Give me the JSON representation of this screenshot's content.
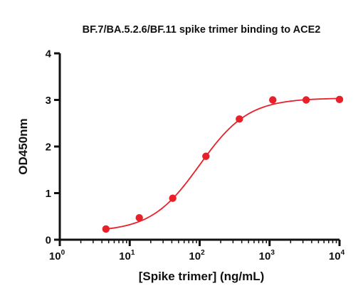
{
  "chart_data": {
    "type": "scatter",
    "title": "BF.7/BA.5.2.6/BF.11 spike trimer binding to ACE2",
    "xlabel": "[Spike trimer] (ng/mL)",
    "ylabel": "OD450nm",
    "x_scale": "log10",
    "xlim": [
      1,
      10000
    ],
    "ylim": [
      0,
      4
    ],
    "x_ticks": [
      {
        "base": "10",
        "exp": "0",
        "value": 1
      },
      {
        "base": "10",
        "exp": "1",
        "value": 10
      },
      {
        "base": "10",
        "exp": "2",
        "value": 100
      },
      {
        "base": "10",
        "exp": "3",
        "value": 1000
      },
      {
        "base": "10",
        "exp": "4",
        "value": 10000
      }
    ],
    "y_ticks": [
      "0",
      "1",
      "2",
      "3",
      "4"
    ],
    "grid": false,
    "color": "#e8202a",
    "series": [
      {
        "x": [
          4.57,
          13.7,
          41.2,
          123,
          370,
          1111,
          3333,
          10000
        ],
        "y": [
          0.23,
          0.47,
          0.89,
          1.79,
          2.59,
          3.0,
          3.0,
          3.01
        ]
      }
    ],
    "fit_curve": {
      "type": "4PL",
      "bottom": 0.17,
      "top": 3.04,
      "ec50": 100,
      "hill": 1.25
    }
  }
}
